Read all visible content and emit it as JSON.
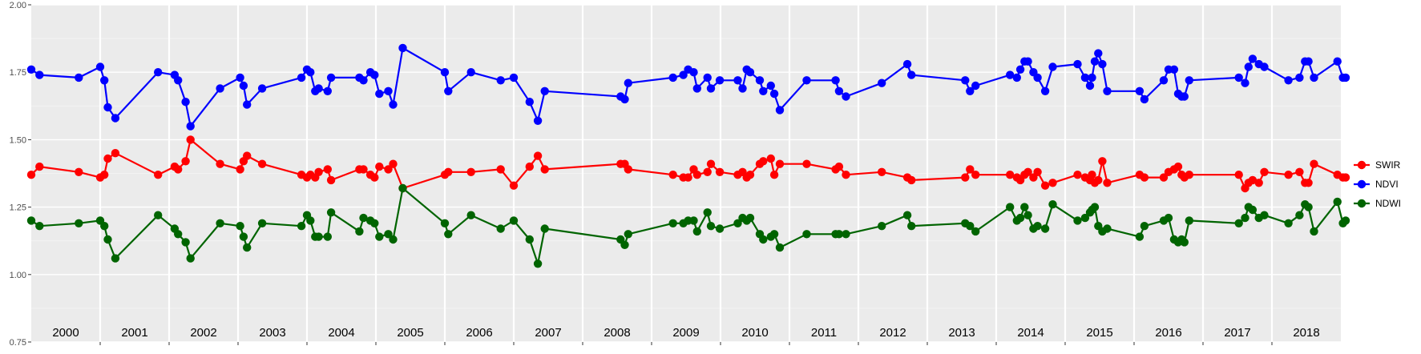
{
  "chart_data": {
    "type": "line",
    "ylim": [
      0.75,
      2.0
    ],
    "yticks": [
      0.75,
      1.0,
      1.25,
      1.5,
      1.75,
      2.0
    ],
    "ytick_labels": [
      "0.75",
      "1.00",
      "1.25",
      "1.50",
      "1.75",
      "2.00"
    ],
    "xlim": [
      2000.0,
      2019.0
    ],
    "year_boundaries": [
      2001,
      2002,
      2003,
      2004,
      2005,
      2006,
      2007,
      2008,
      2009,
      2010,
      2011,
      2012,
      2013,
      2014,
      2015,
      2016,
      2017,
      2018
    ],
    "year_labels": [
      "2000",
      "2001",
      "2002",
      "2003",
      "2004",
      "2005",
      "2006",
      "2007",
      "2008",
      "2009",
      "2010",
      "2011",
      "2012",
      "2013",
      "2014",
      "2015",
      "2016",
      "2017",
      "2018"
    ],
    "grid": true,
    "legend_position": "right",
    "series": [
      {
        "name": "SWIR",
        "color": "#ff0000",
        "x": [
          2000.0,
          2000.12,
          2000.69,
          2001.0,
          2001.06,
          2001.11,
          2001.22,
          2001.84,
          2002.08,
          2002.13,
          2002.24,
          2002.31,
          2002.74,
          2003.03,
          2003.08,
          2003.13,
          2003.35,
          2003.92,
          2004.0,
          2004.05,
          2004.12,
          2004.17,
          2004.3,
          2004.35,
          2004.76,
          2004.82,
          2004.92,
          2004.98,
          2005.05,
          2005.18,
          2005.25,
          2005.39,
          2006.0,
          2006.05,
          2006.38,
          2006.81,
          2007.0,
          2007.23,
          2007.35,
          2007.45,
          2008.55,
          2008.61,
          2008.66,
          2009.31,
          2009.46,
          2009.53,
          2009.61,
          2009.66,
          2009.81,
          2009.86,
          2009.99,
          2010.25,
          2010.32,
          2010.38,
          2010.43,
          2010.57,
          2010.62,
          2010.73,
          2010.78,
          2010.86,
          2011.25,
          2011.67,
          2011.72,
          2011.82,
          2012.34,
          2012.71,
          2012.77,
          2013.55,
          2013.62,
          2013.7,
          2014.2,
          2014.3,
          2014.35,
          2014.41,
          2014.46,
          2014.54,
          2014.6,
          2014.71,
          2014.82,
          2015.18,
          2015.29,
          2015.36,
          2015.39,
          2015.43,
          2015.48,
          2015.54,
          2015.61,
          2016.08,
          2016.15,
          2016.43,
          2016.5,
          2016.58,
          2016.64,
          2016.69,
          2016.73,
          2016.8,
          2017.52,
          2017.61,
          2017.66,
          2017.72,
          2017.81,
          2017.89,
          2018.24,
          2018.4,
          2018.48,
          2018.53,
          2018.61,
          2018.95,
          2019.03,
          2019.07
        ]
      },
      {
        "name": "NDVI",
        "color": "#0000ff",
        "x": [
          2000.0,
          2000.12,
          2000.69,
          2001.0,
          2001.06,
          2001.11,
          2001.22,
          2001.84,
          2002.08,
          2002.13,
          2002.24,
          2002.31,
          2002.74,
          2003.03,
          2003.08,
          2003.13,
          2003.35,
          2003.92,
          2004.0,
          2004.05,
          2004.12,
          2004.17,
          2004.3,
          2004.35,
          2004.76,
          2004.82,
          2004.92,
          2004.98,
          2005.05,
          2005.18,
          2005.25,
          2005.39,
          2006.0,
          2006.05,
          2006.38,
          2006.81,
          2007.0,
          2007.23,
          2007.35,
          2007.45,
          2008.55,
          2008.61,
          2008.66,
          2009.31,
          2009.46,
          2009.53,
          2009.61,
          2009.66,
          2009.81,
          2009.86,
          2009.99,
          2010.25,
          2010.32,
          2010.38,
          2010.43,
          2010.57,
          2010.62,
          2010.73,
          2010.78,
          2010.86,
          2011.25,
          2011.67,
          2011.72,
          2011.82,
          2012.34,
          2012.71,
          2012.77,
          2013.55,
          2013.62,
          2013.7,
          2014.2,
          2014.3,
          2014.35,
          2014.41,
          2014.46,
          2014.54,
          2014.6,
          2014.71,
          2014.82,
          2015.18,
          2015.29,
          2015.36,
          2015.39,
          2015.43,
          2015.48,
          2015.54,
          2015.61,
          2016.08,
          2016.15,
          2016.43,
          2016.5,
          2016.58,
          2016.64,
          2016.69,
          2016.73,
          2016.8,
          2017.52,
          2017.61,
          2017.66,
          2017.72,
          2017.81,
          2017.89,
          2018.24,
          2018.4,
          2018.48,
          2018.53,
          2018.61,
          2018.95,
          2019.03,
          2019.07
        ]
      },
      {
        "name": "NDWI",
        "color": "#006400",
        "x": [
          2000.0,
          2000.12,
          2000.69,
          2001.0,
          2001.06,
          2001.11,
          2001.22,
          2001.84,
          2002.08,
          2002.13,
          2002.24,
          2002.31,
          2002.74,
          2003.03,
          2003.08,
          2003.13,
          2003.35,
          2003.92,
          2004.0,
          2004.05,
          2004.12,
          2004.17,
          2004.3,
          2004.35,
          2004.76,
          2004.82,
          2004.92,
          2004.98,
          2005.05,
          2005.18,
          2005.25,
          2005.39,
          2006.0,
          2006.05,
          2006.38,
          2006.81,
          2007.0,
          2007.23,
          2007.35,
          2007.45,
          2008.55,
          2008.61,
          2008.66,
          2009.31,
          2009.46,
          2009.53,
          2009.61,
          2009.66,
          2009.81,
          2009.86,
          2009.99,
          2010.25,
          2010.32,
          2010.38,
          2010.43,
          2010.57,
          2010.62,
          2010.73,
          2010.78,
          2010.86,
          2011.25,
          2011.67,
          2011.72,
          2011.82,
          2012.34,
          2012.71,
          2012.77,
          2013.55,
          2013.62,
          2013.7,
          2014.2,
          2014.3,
          2014.35,
          2014.41,
          2014.46,
          2014.54,
          2014.6,
          2014.71,
          2014.82,
          2015.18,
          2015.29,
          2015.36,
          2015.39,
          2015.43,
          2015.48,
          2015.54,
          2015.61,
          2016.08,
          2016.15,
          2016.43,
          2016.5,
          2016.58,
          2016.64,
          2016.69,
          2016.73,
          2016.8,
          2017.52,
          2017.61,
          2017.66,
          2017.72,
          2017.81,
          2017.89,
          2018.24,
          2018.4,
          2018.48,
          2018.53,
          2018.61,
          2018.95,
          2019.03,
          2019.07
        ]
      }
    ],
    "y_values": {
      "SWIR": [
        1.37,
        1.4,
        1.38,
        1.36,
        1.37,
        1.43,
        1.45,
        1.37,
        1.4,
        1.39,
        1.42,
        1.5,
        1.41,
        1.39,
        1.42,
        1.44,
        1.41,
        1.37,
        1.36,
        1.37,
        1.36,
        1.38,
        1.39,
        1.35,
        1.39,
        1.39,
        1.37,
        1.36,
        1.4,
        1.39,
        1.41,
        1.32,
        1.37,
        1.38,
        1.38,
        1.39,
        1.33,
        1.4,
        1.44,
        1.39,
        1.41,
        1.41,
        1.39,
        1.37,
        1.36,
        1.36,
        1.39,
        1.37,
        1.38,
        1.41,
        1.38,
        1.37,
        1.38,
        1.36,
        1.37,
        1.41,
        1.42,
        1.43,
        1.37,
        1.41,
        1.41,
        1.39,
        1.4,
        1.37,
        1.38,
        1.36,
        1.35,
        1.36,
        1.39,
        1.37,
        1.37,
        1.36,
        1.35,
        1.37,
        1.38,
        1.36,
        1.38,
        1.33,
        1.34,
        1.37,
        1.36,
        1.35,
        1.37,
        1.34,
        1.35,
        1.42,
        1.34,
        1.37,
        1.36,
        1.36,
        1.38,
        1.39,
        1.4,
        1.37,
        1.36,
        1.37,
        1.37,
        1.32,
        1.34,
        1.35,
        1.34,
        1.38,
        1.37,
        1.38,
        1.34,
        1.34,
        1.41,
        1.37,
        1.36,
        1.36
      ],
      "NDVI": [
        1.76,
        1.74,
        1.73,
        1.77,
        1.72,
        1.62,
        1.58,
        1.75,
        1.74,
        1.72,
        1.64,
        1.55,
        1.69,
        1.73,
        1.7,
        1.63,
        1.69,
        1.73,
        1.76,
        1.75,
        1.68,
        1.69,
        1.68,
        1.73,
        1.73,
        1.72,
        1.75,
        1.74,
        1.67,
        1.68,
        1.63,
        1.84,
        1.75,
        1.68,
        1.75,
        1.72,
        1.73,
        1.64,
        1.57,
        1.68,
        1.66,
        1.65,
        1.71,
        1.73,
        1.74,
        1.76,
        1.75,
        1.69,
        1.73,
        1.69,
        1.72,
        1.72,
        1.69,
        1.76,
        1.75,
        1.72,
        1.68,
        1.7,
        1.67,
        1.61,
        1.72,
        1.72,
        1.68,
        1.66,
        1.71,
        1.78,
        1.74,
        1.72,
        1.68,
        1.7,
        1.74,
        1.73,
        1.76,
        1.79,
        1.79,
        1.75,
        1.73,
        1.68,
        1.77,
        1.78,
        1.73,
        1.7,
        1.73,
        1.79,
        1.82,
        1.78,
        1.68,
        1.68,
        1.65,
        1.72,
        1.76,
        1.76,
        1.67,
        1.66,
        1.66,
        1.72,
        1.73,
        1.71,
        1.77,
        1.8,
        1.78,
        1.77,
        1.72,
        1.73,
        1.79,
        1.79,
        1.73,
        1.79,
        1.73,
        1.73
      ],
      "NDWI": [
        1.2,
        1.18,
        1.19,
        1.2,
        1.18,
        1.13,
        1.06,
        1.22,
        1.17,
        1.15,
        1.12,
        1.06,
        1.19,
        1.18,
        1.14,
        1.1,
        1.19,
        1.18,
        1.22,
        1.2,
        1.14,
        1.14,
        1.14,
        1.23,
        1.16,
        1.21,
        1.2,
        1.19,
        1.14,
        1.15,
        1.13,
        1.32,
        1.19,
        1.15,
        1.22,
        1.17,
        1.2,
        1.13,
        1.04,
        1.17,
        1.13,
        1.11,
        1.15,
        1.19,
        1.19,
        1.2,
        1.2,
        1.16,
        1.23,
        1.18,
        1.17,
        1.19,
        1.21,
        1.2,
        1.21,
        1.15,
        1.13,
        1.14,
        1.15,
        1.1,
        1.15,
        1.15,
        1.15,
        1.15,
        1.18,
        1.22,
        1.18,
        1.19,
        1.18,
        1.16,
        1.25,
        1.2,
        1.21,
        1.25,
        1.22,
        1.17,
        1.18,
        1.17,
        1.26,
        1.2,
        1.21,
        1.23,
        1.24,
        1.25,
        1.18,
        1.16,
        1.17,
        1.14,
        1.18,
        1.2,
        1.21,
        1.13,
        1.12,
        1.13,
        1.12,
        1.2,
        1.19,
        1.21,
        1.25,
        1.24,
        1.21,
        1.22,
        1.19,
        1.22,
        1.26,
        1.25,
        1.16,
        1.27,
        1.19,
        1.2
      ]
    }
  }
}
